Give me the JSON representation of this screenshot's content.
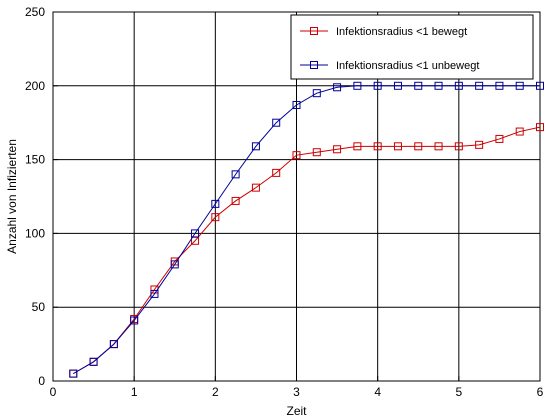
{
  "chart_data": {
    "type": "line",
    "title": "",
    "xlabel": "Zeit",
    "ylabel": "Anzahl von Infizierten",
    "xlim": [
      0,
      6
    ],
    "ylim": [
      0,
      250
    ],
    "xticks": [
      "0",
      "1",
      "2",
      "3",
      "4",
      "5",
      "6"
    ],
    "yticks": [
      "0",
      "50",
      "100",
      "150",
      "200",
      "250"
    ],
    "grid": true,
    "legend_position": "top-right",
    "x": [
      0.25,
      0.5,
      0.75,
      1.0,
      1.25,
      1.5,
      1.75,
      2.0,
      2.25,
      2.5,
      2.75,
      3.0,
      3.25,
      3.5,
      3.75,
      4.0,
      4.25,
      4.5,
      4.75,
      5.0,
      5.25,
      5.5,
      5.75,
      6.0
    ],
    "series": [
      {
        "name": "Infektionsradius <1 bewegt",
        "color": "#cc0000",
        "marker": "square",
        "values": [
          5,
          13,
          25,
          42,
          62,
          81,
          95,
          111,
          122,
          131,
          141,
          153,
          155,
          157,
          159,
          159,
          159,
          159,
          159,
          159,
          160,
          164,
          169,
          172
        ]
      },
      {
        "name": "Infektionsradius <1 unbewegt",
        "color": "#000099",
        "marker": "square",
        "values": [
          5,
          13,
          25,
          41,
          59,
          79,
          100,
          120,
          140,
          159,
          175,
          187,
          195,
          199,
          200,
          200,
          200,
          200,
          200,
          200,
          200,
          200,
          200,
          200
        ]
      }
    ]
  }
}
